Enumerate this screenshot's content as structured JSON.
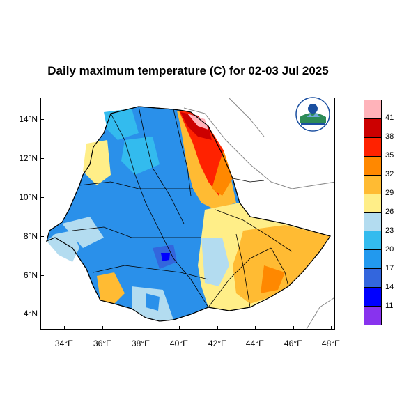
{
  "title": "Daily maximum temperature (C) for 02-03 Jul 2025",
  "y_axis_ticks": [
    "14°N",
    "12°N",
    "10°N",
    "8°N",
    "6°N",
    "4°N"
  ],
  "x_axis_ticks": [
    "34°E",
    "36°E",
    "38°E",
    "40°E",
    "42°E",
    "44°E",
    "46°E",
    "48°E"
  ],
  "colorbar": {
    "colors": [
      "#ffb3ba",
      "#cc0000",
      "#ff2200",
      "#ff8800",
      "#ffbb33",
      "#ffee88",
      "#b3dcf0",
      "#33bbee",
      "#2299ee",
      "#3366dd",
      "#0000ff",
      "#8833ee"
    ],
    "labels": [
      "41",
      "38",
      "35",
      "32",
      "29",
      "26",
      "23",
      "20",
      "17",
      "14",
      "11"
    ]
  },
  "logo": {
    "text_top": "የኢትዮጵያ ሜቲዎሮሎጂ ኢንስቲትዩት",
    "text_bottom": "Ethiopian Meteorology Institute"
  }
}
